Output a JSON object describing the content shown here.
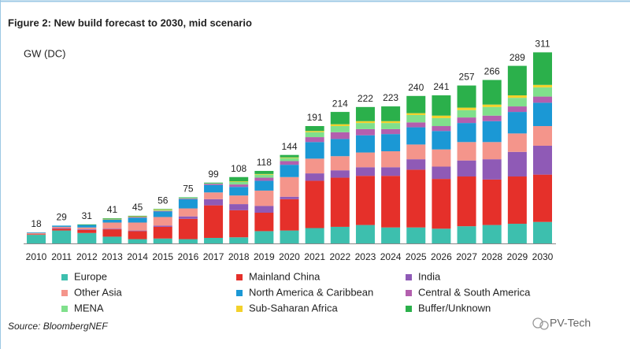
{
  "chart_data": {
    "type": "stacked-bar",
    "title": "Figure 2:  New build forecast to 2030, mid scenario",
    "y_label": "GW (DC)",
    "source": "Source: BloombergNEF",
    "watermark": "PV-Tech",
    "categories": [
      "2010",
      "2011",
      "2012",
      "2013",
      "2014",
      "2015",
      "2016",
      "2017",
      "2018",
      "2019",
      "2020",
      "2021",
      "2022",
      "2023",
      "2024",
      "2025",
      "2026",
      "2027",
      "2028",
      "2029",
      "2030"
    ],
    "totals": [
      18,
      29,
      31,
      41,
      45,
      56,
      75,
      99,
      108,
      118,
      144,
      191,
      214,
      222,
      223,
      240,
      241,
      257,
      266,
      289,
      311
    ],
    "series": [
      {
        "name": "Europe",
        "color": "#3dbfae",
        "values": [
          14,
          21,
          17,
          11,
          7,
          8,
          7,
          9,
          10,
          20,
          21,
          25,
          27,
          30,
          26,
          26,
          24,
          28,
          30,
          32,
          35
        ]
      },
      {
        "name": "Mainland China",
        "color": "#e5302a",
        "values": [
          1,
          3,
          5,
          12,
          13,
          19,
          33,
          53,
          44,
          30,
          51,
          77,
          80,
          80,
          84,
          94,
          81,
          81,
          74,
          77,
          77
        ]
      },
      {
        "name": "India",
        "color": "#8f5ab6",
        "values": [
          0,
          1,
          1,
          1,
          1,
          2,
          4,
          10,
          10,
          11,
          4,
          12,
          12,
          14,
          14,
          17,
          20,
          26,
          33,
          40,
          47
        ]
      },
      {
        "name": "Other Asia",
        "color": "#f4958b",
        "values": [
          2,
          2,
          3,
          10,
          13,
          14,
          13,
          11,
          14,
          25,
          32,
          24,
          23,
          24,
          26,
          24,
          28,
          30,
          28,
          30,
          32
        ]
      },
      {
        "name": "North America & Caribbean",
        "color": "#1b98d5",
        "values": [
          1,
          2,
          4,
          5,
          8,
          9,
          15,
          12,
          14,
          16,
          20,
          27,
          28,
          28,
          28,
          28,
          30,
          31,
          34,
          35,
          38
        ]
      },
      {
        "name": "Central & South America",
        "color": "#b35fae",
        "values": [
          0,
          0,
          0,
          0,
          1,
          1,
          1,
          2,
          4,
          5,
          6,
          8,
          11,
          10,
          8,
          8,
          8,
          9,
          9,
          9,
          10
        ]
      },
      {
        "name": "MENA",
        "color": "#80e08c",
        "values": [
          0,
          0,
          0,
          0,
          0,
          1,
          1,
          1,
          4,
          5,
          5,
          8,
          10,
          10,
          10,
          12,
          13,
          12,
          14,
          14,
          15
        ]
      },
      {
        "name": "Sub-Saharan Africa",
        "color": "#f3d12b",
        "values": [
          0,
          0,
          0,
          1,
          1,
          1,
          0,
          0,
          1,
          1,
          1,
          2,
          3,
          3,
          3,
          3,
          4,
          4,
          4,
          4,
          4
        ]
      },
      {
        "name": "Buffer/Unknown",
        "color": "#2bb04b",
        "values": [
          0,
          0,
          1,
          1,
          1,
          1,
          1,
          1,
          7,
          5,
          4,
          8,
          20,
          23,
          24,
          28,
          33,
          36,
          40,
          48,
          53
        ]
      }
    ]
  }
}
